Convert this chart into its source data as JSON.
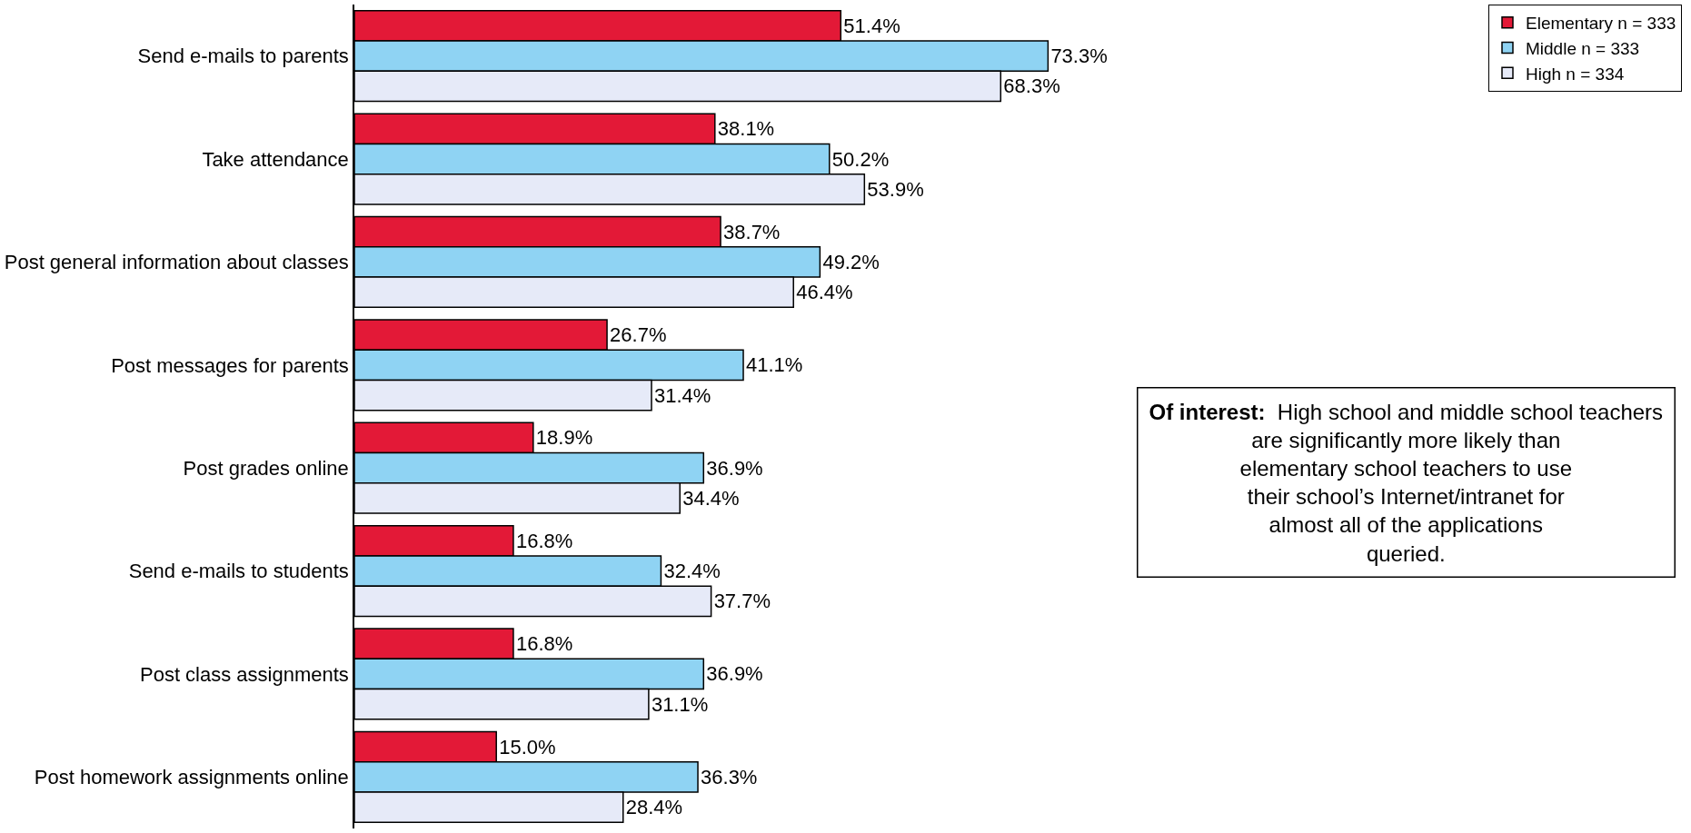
{
  "chart_data": {
    "type": "bar",
    "orientation": "horizontal",
    "categories": [
      "Send e-mails to parents",
      "Take attendance",
      "Post general information about classes",
      "Post messages for parents",
      "Post grades online",
      "Send e-mails to students",
      "Post class assignments",
      "Post homework assignments online"
    ],
    "series": [
      {
        "name": "Elementary n = 333",
        "color": "#e31937",
        "values": [
          51.4,
          38.1,
          38.7,
          26.7,
          18.9,
          16.8,
          16.8,
          15.0
        ],
        "value_labels": [
          "51.4%",
          "38.1%",
          "38.7%",
          "26.7%",
          "18.9%",
          "16.8%",
          "16.8%",
          "15.0%"
        ]
      },
      {
        "name": "Middle n = 333",
        "color": "#8fd3f3",
        "values": [
          73.3,
          50.2,
          49.2,
          41.1,
          36.9,
          32.4,
          36.9,
          36.3
        ],
        "value_labels": [
          "73.3%",
          "50.2%",
          "49.2%",
          "41.1%",
          "36.9%",
          "32.4%",
          "36.9%",
          "36.3%"
        ]
      },
      {
        "name": "High n = 334",
        "color": "#e6eaf8",
        "values": [
          68.3,
          53.9,
          46.4,
          31.4,
          34.4,
          37.7,
          31.1,
          28.4
        ],
        "value_labels": [
          "68.3%",
          "53.9%",
          "46.4%",
          "31.4%",
          "34.4%",
          "37.7%",
          "31.1%",
          "28.4%"
        ]
      }
    ],
    "legend": "top right",
    "annotations": [
      "Of interest:  High school and middle school teachers are significantly more likely than elementary school teachers to use their school’s Internet/intranet for almost all of the applications queried."
    ]
  }
}
